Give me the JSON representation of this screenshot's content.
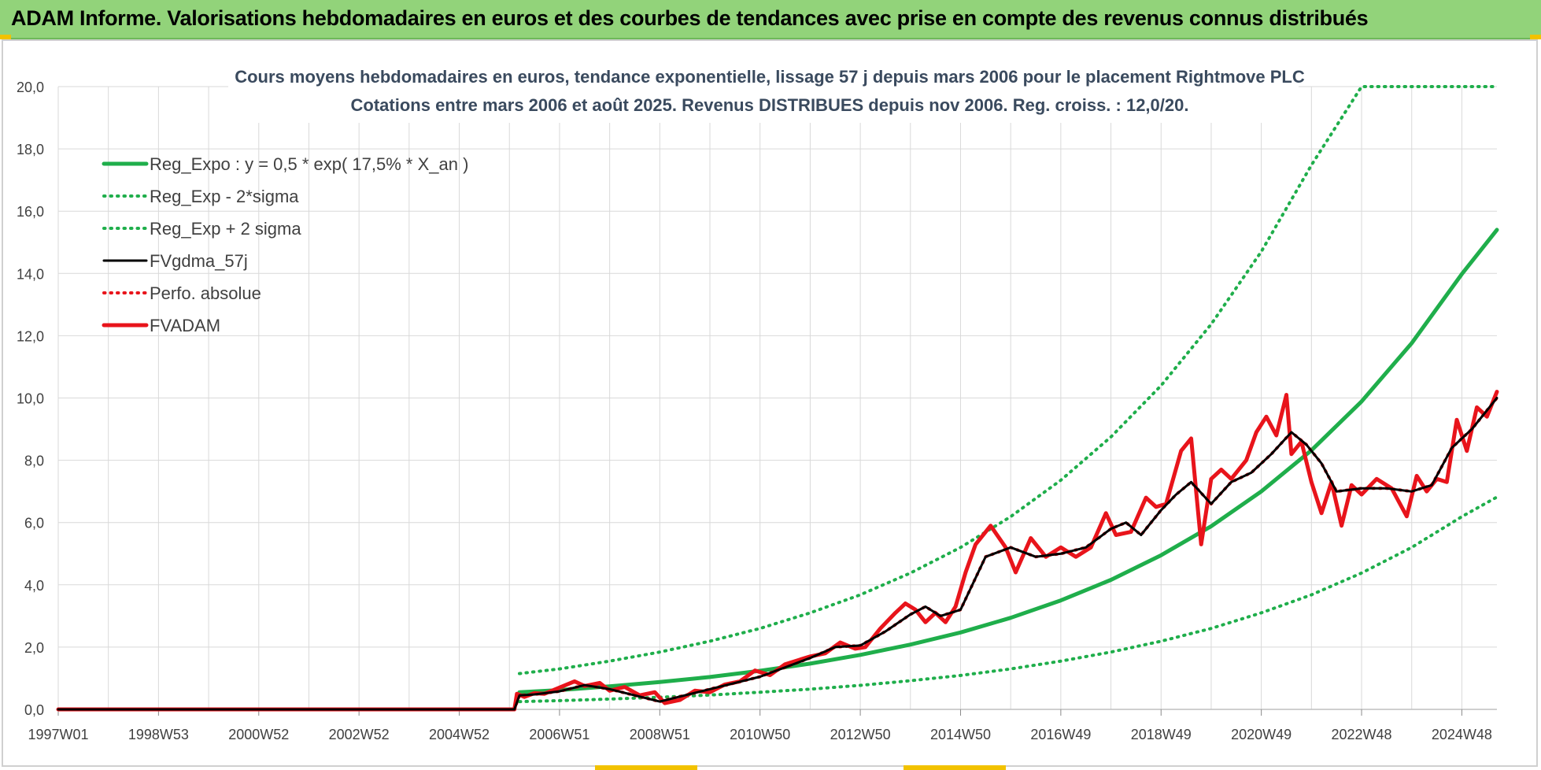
{
  "header": {
    "title": "ADAM Informe. Valorisations hebdomadaires en euros et des courbes de tendances avec prise en compte des revenus connus distribués"
  },
  "colors": {
    "banner": "#92d37a",
    "trend": "#1fae4b",
    "fvgdma": "#000000",
    "fvadam": "#e8141b",
    "grid": "#d9d9d9"
  },
  "chart_data": {
    "type": "line",
    "title": "Cours moyens hebdomadaires en euros, tendance exponentielle, lissage 57 j depuis mars 2006 pour le placement Rightmove PLC",
    "subtitle": "Cotations entre mars 2006 et août 2025.  Revenus DISTRIBUES depuis nov 2006. Reg. croiss. : 12,0/20.",
    "xlabel": "",
    "ylabel": "",
    "ylim": [
      0,
      20
    ],
    "yticks": [
      "0,0",
      "2,0",
      "4,0",
      "6,0",
      "8,0",
      "10,0",
      "12,0",
      "14,0",
      "16,0",
      "18,0",
      "20,0"
    ],
    "xticks": [
      "1997W01",
      "1998W53",
      "2000W52",
      "2002W52",
      "2004W52",
      "2006W51",
      "2008W51",
      "2010W50",
      "2012W50",
      "2014W50",
      "2016W49",
      "2018W49",
      "2020W49",
      "2022W48",
      "2024W48"
    ],
    "xtick_years": [
      1997.0,
      1999.0,
      2001.0,
      2003.0,
      2005.0,
      2007.0,
      2009.0,
      2011.0,
      2013.0,
      2015.0,
      2017.0,
      2019.0,
      2021.0,
      2023.0,
      2025.0
    ],
    "xlim": [
      1997.0,
      2025.7
    ],
    "grid": true,
    "legend_position": "top-left",
    "legend": [
      "Reg_Expo : y = 0,5 * exp( 17,5% *  X_an )",
      "Reg_Exp - 2*sigma",
      "Reg_Exp + 2 sigma",
      "FVgdma_57j",
      "Perfo. absolue",
      "FVADAM"
    ],
    "series": [
      {
        "name": "Reg_Expo : y = 0,5 * exp( 17,5% *  X_an )",
        "style": "solid-thick",
        "color": "#1fae4b",
        "x": [
          2006.2,
          2007,
          2008,
          2009,
          2010,
          2011,
          2012,
          2013,
          2014,
          2015,
          2016,
          2017,
          2018,
          2019,
          2020,
          2021,
          2022,
          2023,
          2024,
          2025,
          2025.7
        ],
        "y": [
          0.55,
          0.62,
          0.74,
          0.88,
          1.04,
          1.24,
          1.47,
          1.75,
          2.08,
          2.47,
          2.94,
          3.5,
          4.16,
          4.95,
          5.88,
          7.0,
          8.32,
          9.89,
          11.76,
          13.98,
          15.4
        ]
      },
      {
        "name": "Reg_Exp - 2*sigma",
        "style": "dotted",
        "color": "#1fae4b",
        "x": [
          2006.2,
          2007,
          2008,
          2009,
          2010,
          2011,
          2012,
          2013,
          2014,
          2015,
          2016,
          2017,
          2018,
          2019,
          2020,
          2021,
          2022,
          2023,
          2024,
          2025,
          2025.7
        ],
        "y": [
          0.25,
          0.28,
          0.33,
          0.39,
          0.46,
          0.55,
          0.65,
          0.77,
          0.92,
          1.09,
          1.3,
          1.55,
          1.84,
          2.19,
          2.6,
          3.1,
          3.68,
          4.38,
          5.2,
          6.19,
          6.82
        ]
      },
      {
        "name": "Reg_Exp + 2 sigma",
        "style": "dotted",
        "color": "#1fae4b",
        "x": [
          2006.2,
          2007,
          2008,
          2009,
          2010,
          2011,
          2012,
          2013,
          2014,
          2015,
          2016,
          2017,
          2018,
          2019,
          2020,
          2021,
          2022,
          2023,
          2024,
          2025,
          2025.7
        ],
        "y": [
          1.15,
          1.3,
          1.55,
          1.84,
          2.19,
          2.6,
          3.1,
          3.68,
          4.38,
          5.2,
          6.19,
          7.36,
          8.75,
          10.4,
          12.37,
          14.7,
          17.48,
          20.0,
          20.0,
          20.0,
          20.0
        ]
      },
      {
        "name": "FVgdma_57j",
        "style": "solid",
        "color": "#000000",
        "x": [
          1997.0,
          2006.1,
          2006.2,
          2006.5,
          2007.0,
          2007.5,
          2008.0,
          2008.5,
          2009.0,
          2009.5,
          2010.0,
          2010.5,
          2011.0,
          2011.5,
          2012.0,
          2012.5,
          2013.0,
          2013.5,
          2014.0,
          2014.3,
          2014.6,
          2015.0,
          2015.5,
          2016.0,
          2016.5,
          2017.0,
          2017.5,
          2018.0,
          2018.3,
          2018.6,
          2019.0,
          2019.3,
          2019.6,
          2020.0,
          2020.4,
          2020.8,
          2021.2,
          2021.6,
          2021.9,
          2022.2,
          2022.5,
          2023.0,
          2023.5,
          2024.0,
          2024.4,
          2024.8,
          2025.2,
          2025.7
        ],
        "y": [
          0.0,
          0.0,
          0.45,
          0.48,
          0.58,
          0.78,
          0.65,
          0.45,
          0.25,
          0.45,
          0.65,
          0.85,
          1.05,
          1.35,
          1.65,
          2.0,
          2.05,
          2.5,
          3.05,
          3.3,
          3.0,
          3.2,
          4.9,
          5.2,
          4.9,
          5.0,
          5.2,
          5.8,
          6.0,
          5.6,
          6.4,
          6.9,
          7.3,
          6.6,
          7.3,
          7.6,
          8.2,
          8.9,
          8.5,
          7.9,
          7.0,
          7.1,
          7.1,
          7.0,
          7.2,
          8.4,
          9.0,
          10.0
        ]
      },
      {
        "name": "Perfo. absolue",
        "style": "dotted",
        "color": "#e8141b",
        "x": [
          1997.0,
          2006.1,
          2006.2,
          2006.5,
          2007.0,
          2007.5,
          2008.0,
          2008.5,
          2009.0,
          2009.5,
          2010.0,
          2010.5,
          2011.0,
          2011.5,
          2012.0,
          2012.5,
          2013.0,
          2013.5,
          2014.0,
          2014.3,
          2014.6,
          2015.0,
          2015.5,
          2016.0,
          2016.5,
          2017.0,
          2017.5,
          2018.0,
          2018.3,
          2018.6,
          2019.0,
          2019.3,
          2019.6,
          2020.0,
          2020.4,
          2020.8,
          2021.2,
          2021.6,
          2021.9,
          2022.2,
          2022.5,
          2023.0,
          2023.5,
          2024.0,
          2024.4,
          2024.8,
          2025.2,
          2025.7
        ],
        "y": [
          0.0,
          0.0,
          0.45,
          0.48,
          0.58,
          0.78,
          0.65,
          0.45,
          0.25,
          0.45,
          0.65,
          0.85,
          1.05,
          1.35,
          1.65,
          2.0,
          2.05,
          2.5,
          3.05,
          3.3,
          3.0,
          3.2,
          4.9,
          5.2,
          4.9,
          5.0,
          5.2,
          5.8,
          6.0,
          5.6,
          6.4,
          6.9,
          7.3,
          6.6,
          7.3,
          7.6,
          8.2,
          8.9,
          8.5,
          7.9,
          7.0,
          7.1,
          7.1,
          7.0,
          7.2,
          8.4,
          9.0,
          10.0
        ]
      },
      {
        "name": "FVADAM",
        "style": "solid-thick",
        "color": "#e8141b",
        "x": [
          1997.0,
          2006.1,
          2006.15,
          2006.3,
          2006.5,
          2006.7,
          2007.0,
          2007.3,
          2007.5,
          2007.8,
          2008.0,
          2008.3,
          2008.6,
          2008.9,
          2009.1,
          2009.4,
          2009.7,
          2010.0,
          2010.3,
          2010.6,
          2010.9,
          2011.2,
          2011.5,
          2011.8,
          2012.0,
          2012.3,
          2012.6,
          2012.9,
          2013.1,
          2013.4,
          2013.7,
          2013.9,
          2014.1,
          2014.3,
          2014.5,
          2014.7,
          2014.9,
          2015.1,
          2015.3,
          2015.6,
          2015.9,
          2016.1,
          2016.4,
          2016.7,
          2017.0,
          2017.3,
          2017.6,
          2017.9,
          2018.1,
          2018.4,
          2018.7,
          2018.9,
          2019.1,
          2019.4,
          2019.6,
          2019.8,
          2020.0,
          2020.2,
          2020.4,
          2020.7,
          2020.9,
          2021.1,
          2021.3,
          2021.5,
          2021.6,
          2021.8,
          2022.0,
          2022.2,
          2022.4,
          2022.6,
          2022.8,
          2023.0,
          2023.3,
          2023.6,
          2023.9,
          2024.1,
          2024.3,
          2024.5,
          2024.7,
          2024.9,
          2025.1,
          2025.3,
          2025.5,
          2025.7
        ],
        "y": [
          0.0,
          0.0,
          0.5,
          0.4,
          0.52,
          0.5,
          0.7,
          0.9,
          0.75,
          0.85,
          0.6,
          0.72,
          0.45,
          0.55,
          0.2,
          0.3,
          0.6,
          0.55,
          0.8,
          0.9,
          1.25,
          1.1,
          1.45,
          1.6,
          1.7,
          1.8,
          2.15,
          1.95,
          2.0,
          2.6,
          3.1,
          3.4,
          3.2,
          2.8,
          3.1,
          2.8,
          3.3,
          4.4,
          5.3,
          5.9,
          5.2,
          4.4,
          5.5,
          4.9,
          5.2,
          4.9,
          5.2,
          6.3,
          5.6,
          5.7,
          6.8,
          6.5,
          6.6,
          8.3,
          8.7,
          5.3,
          7.4,
          7.7,
          7.4,
          8.0,
          8.9,
          9.4,
          8.8,
          10.1,
          8.2,
          8.6,
          7.3,
          6.3,
          7.3,
          5.9,
          7.2,
          6.9,
          7.4,
          7.1,
          6.2,
          7.5,
          7.0,
          7.4,
          7.3,
          9.3,
          8.3,
          9.7,
          9.4,
          10.2
        ]
      }
    ]
  }
}
